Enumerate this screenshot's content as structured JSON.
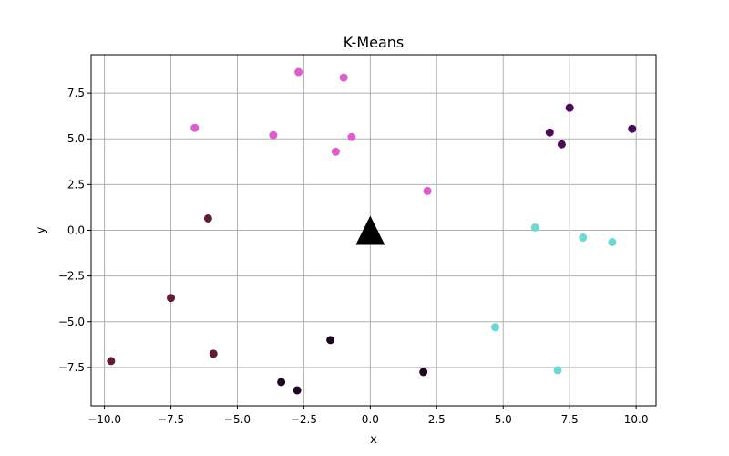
{
  "chart_data": {
    "type": "scatter",
    "title": "K-Means",
    "xlabel": "x",
    "ylabel": "y",
    "xlim": [
      -10.5,
      10.75
    ],
    "ylim": [
      -9.6,
      9.6
    ],
    "grid": true,
    "xticks": [
      -10.0,
      -7.5,
      -5.0,
      -2.5,
      0.0,
      2.5,
      5.0,
      7.5,
      10.0
    ],
    "xtick_labels": [
      "−10.0",
      "−7.5",
      "−5.0",
      "−2.5",
      "0.0",
      "2.5",
      "5.0",
      "7.5",
      "10.0"
    ],
    "yticks": [
      -7.5,
      -5.0,
      -2.5,
      0.0,
      2.5,
      5.0,
      7.5
    ],
    "ytick_labels": [
      "−7.5",
      "−5.0",
      "−2.5",
      "0.0",
      "2.5",
      "5.0",
      "7.5"
    ],
    "clusters": [
      {
        "color": "#dd5ccf",
        "points": [
          [
            -2.7,
            8.65
          ],
          [
            -1.0,
            8.35
          ],
          [
            -6.6,
            5.6
          ],
          [
            -3.65,
            5.2
          ],
          [
            -0.7,
            5.1
          ],
          [
            -1.3,
            4.3
          ],
          [
            2.15,
            2.15
          ]
        ]
      },
      {
        "color": "#4a0a5c",
        "points": [
          [
            7.5,
            6.7
          ],
          [
            6.75,
            5.35
          ],
          [
            7.2,
            4.7
          ],
          [
            9.85,
            5.55
          ]
        ]
      },
      {
        "color": "#6ed8d3",
        "points": [
          [
            6.2,
            0.15
          ],
          [
            8.0,
            -0.4
          ],
          [
            9.1,
            -0.65
          ],
          [
            4.7,
            -5.3
          ],
          [
            7.05,
            -7.65
          ]
        ]
      },
      {
        "color": "#5e1e30",
        "points": [
          [
            -6.1,
            0.65
          ],
          [
            -7.5,
            -3.7
          ],
          [
            -5.9,
            -6.75
          ],
          [
            -9.75,
            -7.15
          ]
        ]
      },
      {
        "color": "#1e0520",
        "points": [
          [
            -1.5,
            -6.0
          ],
          [
            2.0,
            -7.75
          ],
          [
            -3.35,
            -8.3
          ],
          [
            -2.75,
            -8.75
          ]
        ]
      }
    ],
    "centroid_marker": {
      "shape": "triangle",
      "color": "#000000",
      "x": 0.0,
      "y": 0.0
    }
  }
}
